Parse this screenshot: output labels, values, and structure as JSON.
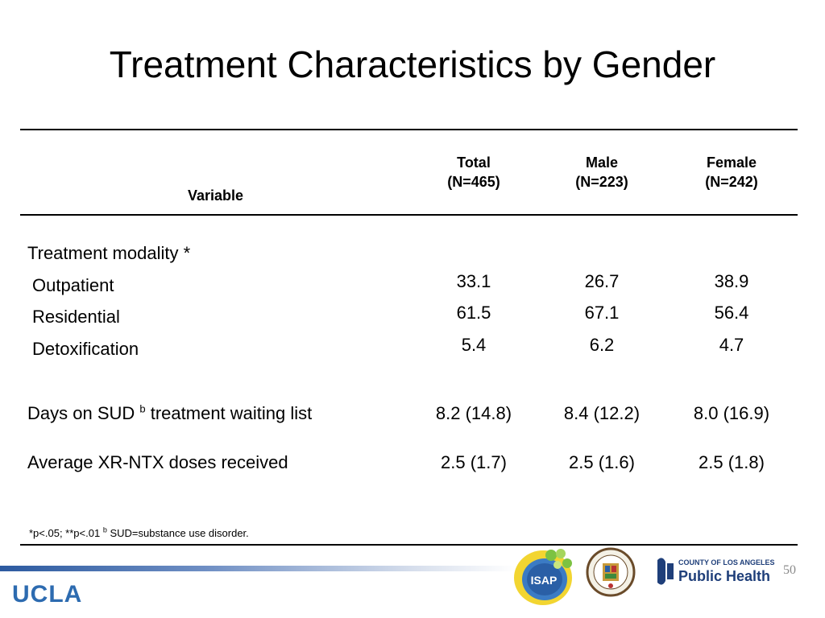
{
  "slide": {
    "title": "Treatment Characteristics by Gender",
    "page_number": "50"
  },
  "table": {
    "header": {
      "variable": "Variable",
      "total": {
        "name": "Total",
        "n": "(N=465)"
      },
      "male": {
        "name": "Male",
        "n": "(N=223)"
      },
      "female": {
        "name": "Female",
        "n": "(N=242)"
      }
    },
    "modality": {
      "label": "Treatment modality *",
      "rows": [
        {
          "label": "Outpatient",
          "total": "33.1",
          "male": "26.7",
          "female": "38.9"
        },
        {
          "label": "Residential",
          "total": "61.5",
          "male": "67.1",
          "female": "56.4"
        },
        {
          "label": "Detoxification",
          "total": "5.4",
          "male": "6.2",
          "female": "4.7"
        }
      ]
    },
    "waiting": {
      "label_pre": "Days on SUD ",
      "label_sup": "b",
      "label_post": " treatment waiting list",
      "total": "8.2 (14.8)",
      "male": "8.4 (12.2)",
      "female": "8.0 (16.9)"
    },
    "doses": {
      "label": "Average XR-NTX doses received",
      "total": "2.5 (1.7)",
      "male": "2.5 (1.6)",
      "female": "2.5 (1.8)"
    }
  },
  "footnote": {
    "pre": "*p<.05; **p<.01 ",
    "sup": "b",
    "post": " SUD=substance use disorder."
  },
  "branding": {
    "ucla": "UCLA",
    "isap": "ISAP",
    "county_small": "COUNTY OF LOS ANGELES",
    "public_health": "Public Health",
    "seal_text": "COUNTY OF LOS ANGELES",
    "colors": {
      "ucla_blue": "#2d6bb0",
      "isap_yellow": "#f2d531",
      "isap_green": "#7cc242",
      "isap_blue": "#2a5fa6",
      "ph_navy": "#1f3f7a"
    }
  }
}
